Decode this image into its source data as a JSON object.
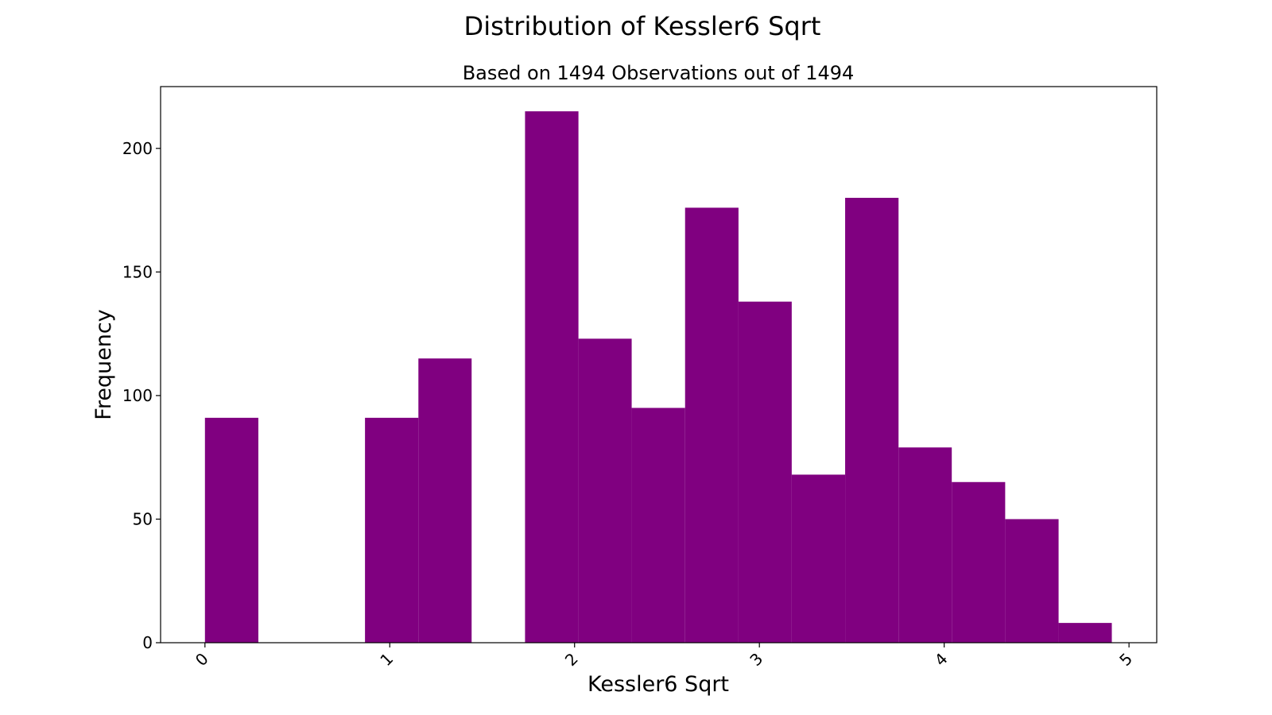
{
  "chart_data": {
    "type": "bar",
    "title": "Distribution of Kessler6 Sqrt",
    "subtitle": "Based on 1494 Observations out of 1494",
    "xlabel": "Kessler6 Sqrt",
    "ylabel": "Frequency",
    "xlim": [
      -0.24,
      5.15
    ],
    "ylim": [
      0,
      225
    ],
    "x_ticks": [
      0,
      1,
      2,
      3,
      4,
      5
    ],
    "y_ticks": [
      0,
      50,
      100,
      150,
      200
    ],
    "bar_color": "#800080",
    "grid": false,
    "bins": [
      {
        "x0": 0.0,
        "x1": 0.289,
        "value": 91
      },
      {
        "x0": 0.289,
        "x1": 0.577,
        "value": 0
      },
      {
        "x0": 0.577,
        "x1": 0.866,
        "value": 0
      },
      {
        "x0": 0.866,
        "x1": 1.155,
        "value": 91
      },
      {
        "x0": 1.155,
        "x1": 1.443,
        "value": 115
      },
      {
        "x0": 1.443,
        "x1": 1.732,
        "value": 0
      },
      {
        "x0": 1.732,
        "x1": 2.021,
        "value": 215
      },
      {
        "x0": 2.021,
        "x1": 2.309,
        "value": 123
      },
      {
        "x0": 2.309,
        "x1": 2.598,
        "value": 95
      },
      {
        "x0": 2.598,
        "x1": 2.887,
        "value": 176
      },
      {
        "x0": 2.887,
        "x1": 3.175,
        "value": 138
      },
      {
        "x0": 3.175,
        "x1": 3.464,
        "value": 68
      },
      {
        "x0": 3.464,
        "x1": 3.753,
        "value": 180
      },
      {
        "x0": 3.753,
        "x1": 4.041,
        "value": 79
      },
      {
        "x0": 4.041,
        "x1": 4.33,
        "value": 65
      },
      {
        "x0": 4.33,
        "x1": 4.619,
        "value": 50
      },
      {
        "x0": 4.619,
        "x1": 4.907,
        "value": 8
      }
    ]
  }
}
